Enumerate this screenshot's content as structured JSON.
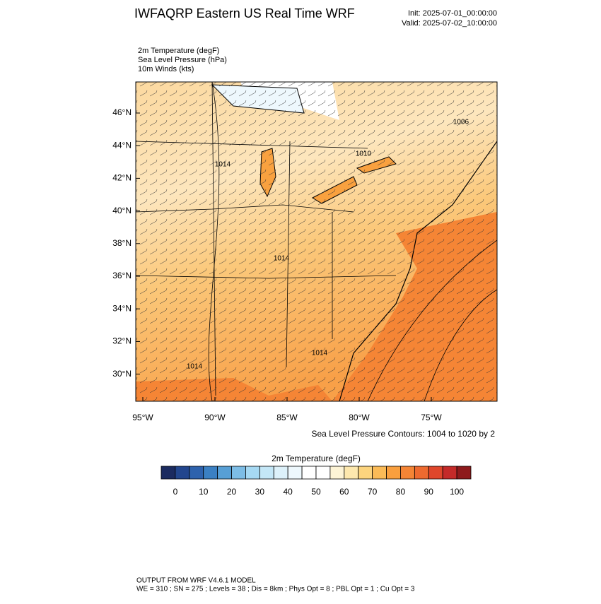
{
  "header": {
    "title": "IWFAQRP Eastern US Real Time WRF",
    "init": "Init: 2025-07-01_00:00:00",
    "valid": "Valid: 2025-07-02_10:00:00"
  },
  "fields": [
    "2m Temperature   (degF)",
    "Sea Level Pressure   (hPa)",
    "10m Winds   (kts)"
  ],
  "map": {
    "lat_labels": [
      "46°N",
      "44°N",
      "42°N",
      "40°N",
      "38°N",
      "36°N",
      "34°N",
      "32°N",
      "30°N"
    ],
    "lon_labels": [
      "95°W",
      "90°W",
      "85°W",
      "80°W",
      "75°W"
    ],
    "contour_labels": [
      "1014",
      "1010",
      "1006",
      "1014",
      "1014",
      "1014"
    ],
    "contour_note": "Sea Level Pressure Contours: 1004 to 1020 by 2"
  },
  "colorbar": {
    "title": "2m Temperature  (degF)",
    "colors": [
      "#1b2b60",
      "#22468e",
      "#2e62ad",
      "#3b80c3",
      "#579fd5",
      "#7dbde6",
      "#a6d9f3",
      "#c4e7f7",
      "#ddf1fa",
      "#eef8fd",
      "#ffffff",
      "#ffffff",
      "#fdf4d6",
      "#fde8ae",
      "#fcd47e",
      "#fbbb57",
      "#f99f3e",
      "#f58535",
      "#ee6a2f",
      "#df462b",
      "#c42a29",
      "#8e1a1c"
    ],
    "ticks": [
      0,
      10,
      20,
      30,
      40,
      50,
      60,
      70,
      80,
      90,
      100
    ]
  },
  "footer": {
    "line1": "OUTPUT FROM WRF V4.6.1 MODEL",
    "line2": "WE = 310 ; SN = 275 ; Levels = 38 ; Dis = 8km ; Phys Opt = 8 ; PBL Opt = 1 ; Cu Opt = 3"
  }
}
